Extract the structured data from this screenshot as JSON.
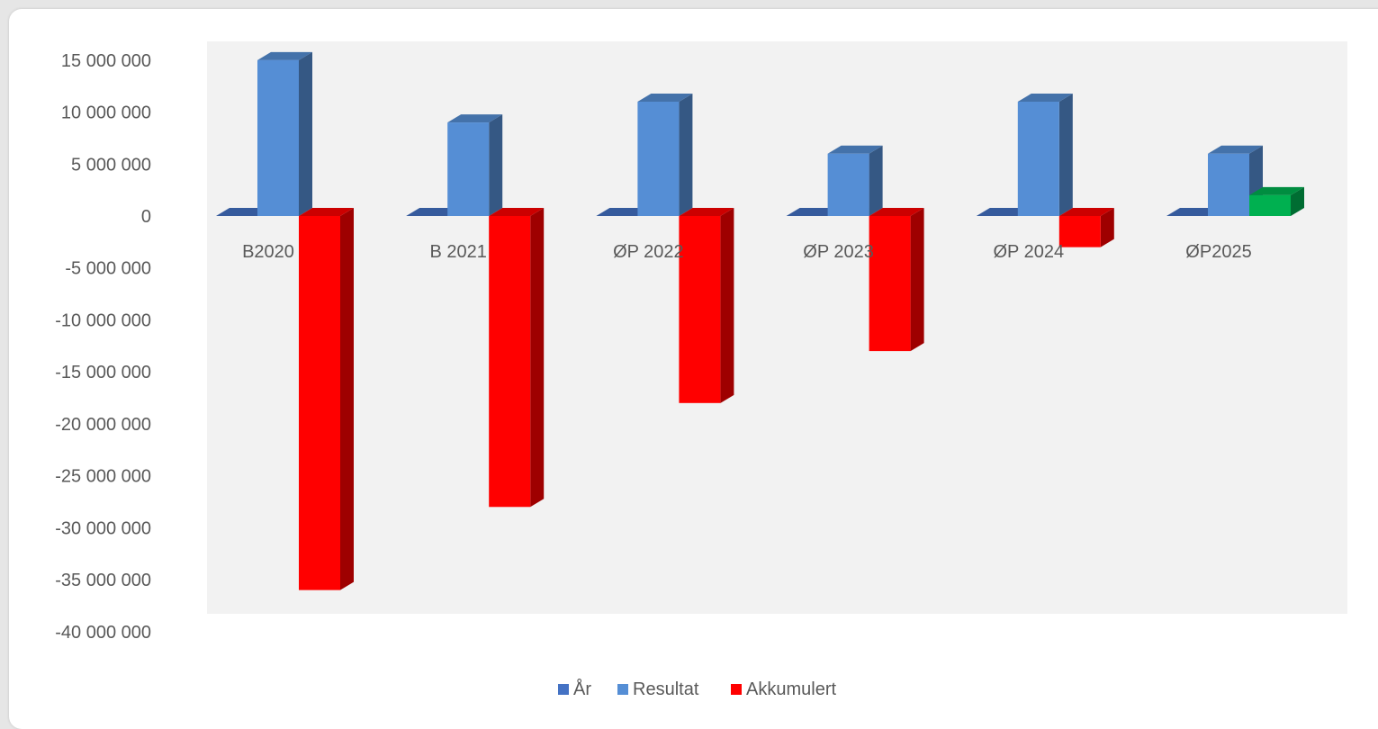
{
  "chart_data": {
    "type": "bar",
    "categories": [
      "B2020",
      "B 2021",
      "ØP 2022",
      "ØP 2023",
      "ØP 2024",
      "ØP2025"
    ],
    "series": [
      {
        "name": "År",
        "values": [
          0,
          0,
          0,
          0,
          0,
          0
        ],
        "color": "#4472c4"
      },
      {
        "name": "Resultat",
        "values": [
          15000000,
          9000000,
          11000000,
          6000000,
          11000000,
          6000000
        ],
        "color": "#558ed5"
      },
      {
        "name": "Akkumulert",
        "values": [
          -36000000,
          -28000000,
          -18000000,
          -13000000,
          -3000000,
          2000000
        ],
        "color": "#ff0000",
        "positive_color": "#00b050"
      }
    ],
    "ylim": [
      -40000000,
      15000000
    ],
    "yticks": [
      "15 000 000",
      "10 000 000",
      "5 000 000",
      "0",
      "-5 000 000",
      "-10 000 000",
      "-15 000 000",
      "-20 000 000",
      "-25 000 000",
      "-30 000 000",
      "-35 000 000",
      "-40 000 000"
    ],
    "ytick_values": [
      15000000,
      10000000,
      5000000,
      0,
      -5000000,
      -10000000,
      -15000000,
      -20000000,
      -25000000,
      -30000000,
      -35000000,
      -40000000
    ],
    "legend": [
      "År",
      "Resultat",
      "Akkumulert"
    ],
    "legend_position": "bottom",
    "grid": false,
    "style": "3d-clustered-column",
    "plot_background": "#f2f2f2"
  }
}
